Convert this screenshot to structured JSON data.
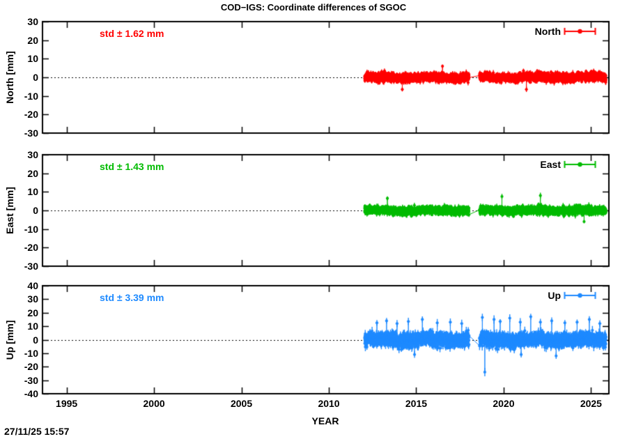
{
  "title": "COD−IGS: Coordinate differences of SGOC",
  "timestamp": "27/11/25 15:57",
  "x_axis": {
    "label": "YEAR",
    "ticks": [
      1995,
      2000,
      2005,
      2010,
      2015,
      2020,
      2025
    ],
    "range": [
      1993.62,
      2026.02
    ]
  },
  "chart_data": [
    {
      "type": "scatter",
      "name": "North",
      "legend": "North",
      "marker": "filled-circle-errorbar",
      "color": "#ff0000",
      "std_label": "std ± 1.62 mm",
      "std_mm": 1.62,
      "errorbar_mm": 1.2,
      "ylabel": "North [mm]",
      "ylim": [
        -30,
        30
      ],
      "yticks": [
        30,
        20,
        10,
        0,
        -10,
        -20,
        -30
      ],
      "zero_line": true,
      "data_span_years": [
        2012.05,
        2025.85
      ],
      "gap_years": [
        2018.02,
        2018.62
      ],
      "outliers": [
        [
          2014.2,
          -6.5
        ],
        [
          2016.5,
          6.0
        ],
        [
          2021.3,
          -6.5
        ]
      ]
    },
    {
      "type": "scatter",
      "name": "East",
      "legend": "East",
      "marker": "filled-circle-errorbar",
      "color": "#00bb00",
      "std_label": "std ± 1.43 mm",
      "std_mm": 1.43,
      "errorbar_mm": 1.2,
      "ylabel": "East [mm]",
      "ylim": [
        -30,
        30
      ],
      "yticks": [
        30,
        20,
        10,
        0,
        -10,
        -20,
        -30
      ],
      "zero_line": true,
      "data_span_years": [
        2012.05,
        2025.85
      ],
      "gap_years": [
        2018.02,
        2018.62
      ],
      "outliers": [
        [
          2013.35,
          6.5
        ],
        [
          2019.9,
          7.5
        ],
        [
          2022.1,
          8.0
        ],
        [
          2024.6,
          -6.0
        ]
      ]
    },
    {
      "type": "scatter",
      "name": "Up",
      "legend": "Up",
      "marker": "filled-circle-errorbar",
      "color": "#1e8aff",
      "std_label": "std ± 3.39 mm",
      "std_mm": 3.39,
      "errorbar_mm": 2.5,
      "ylabel": "Up [mm]",
      "ylim": [
        -40,
        40
      ],
      "yticks": [
        40,
        30,
        20,
        10,
        0,
        -10,
        -20,
        -30,
        -40
      ],
      "zero_line": true,
      "data_span_years": [
        2012.05,
        2025.85
      ],
      "gap_years": [
        2018.02,
        2018.62
      ],
      "outliers": [
        [
          2012.75,
          12.5
        ],
        [
          2013.3,
          14
        ],
        [
          2013.9,
          12
        ],
        [
          2014.55,
          13.5
        ],
        [
          2014.9,
          -11
        ],
        [
          2015.35,
          15
        ],
        [
          2016.2,
          12.5
        ],
        [
          2016.95,
          13
        ],
        [
          2017.6,
          12
        ],
        [
          2018.78,
          16.5
        ],
        [
          2018.92,
          -24
        ],
        [
          2019.45,
          15
        ],
        [
          2019.8,
          13.5
        ],
        [
          2020.35,
          16
        ],
        [
          2020.95,
          13
        ],
        [
          2021.0,
          -11
        ],
        [
          2021.55,
          17
        ],
        [
          2022.1,
          13
        ],
        [
          2022.75,
          14
        ],
        [
          2023.0,
          -12
        ],
        [
          2023.5,
          12.5
        ],
        [
          2024.2,
          13
        ],
        [
          2024.9,
          15
        ],
        [
          2025.5,
          12
        ]
      ]
    }
  ]
}
